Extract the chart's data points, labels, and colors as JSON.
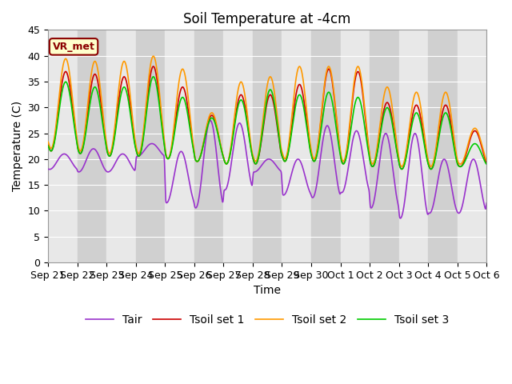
{
  "title": "Soil Temperature at -4cm",
  "xlabel": "Time",
  "ylabel": "Temperature (C)",
  "ylim": [
    0,
    45
  ],
  "annotation": "VR_met",
  "line_colors": {
    "Tair": "#9933cc",
    "Tsoil set 1": "#cc0000",
    "Tsoil set 2": "#ff9900",
    "Tsoil set 3": "#00cc00"
  },
  "line_widths": {
    "Tair": 1.2,
    "Tsoil set 1": 1.2,
    "Tsoil set 2": 1.2,
    "Tsoil set 3": 1.2
  },
  "background_color": "#ffffff",
  "plot_bg_color": "#e0e0e0",
  "band_color_light": "#e8e8e8",
  "band_color_dark": "#d0d0d0",
  "title_fontsize": 12,
  "axis_fontsize": 10,
  "tick_fontsize": 9,
  "legend_fontsize": 10,
  "xtick_labels": [
    "Sep 21",
    "Sep 22",
    "Sep 23",
    "Sep 24",
    "Sep 25",
    "Sep 26",
    "Sep 27",
    "Sep 28",
    "Sep 29",
    "Sep 30",
    "Oct 1",
    "Oct 2",
    "Oct 3",
    "Oct 4",
    "Oct 5",
    "Oct 6"
  ],
  "ytick_values": [
    0,
    5,
    10,
    15,
    20,
    25,
    30,
    35,
    40,
    45
  ],
  "n_points": 1440,
  "end_day": 15
}
